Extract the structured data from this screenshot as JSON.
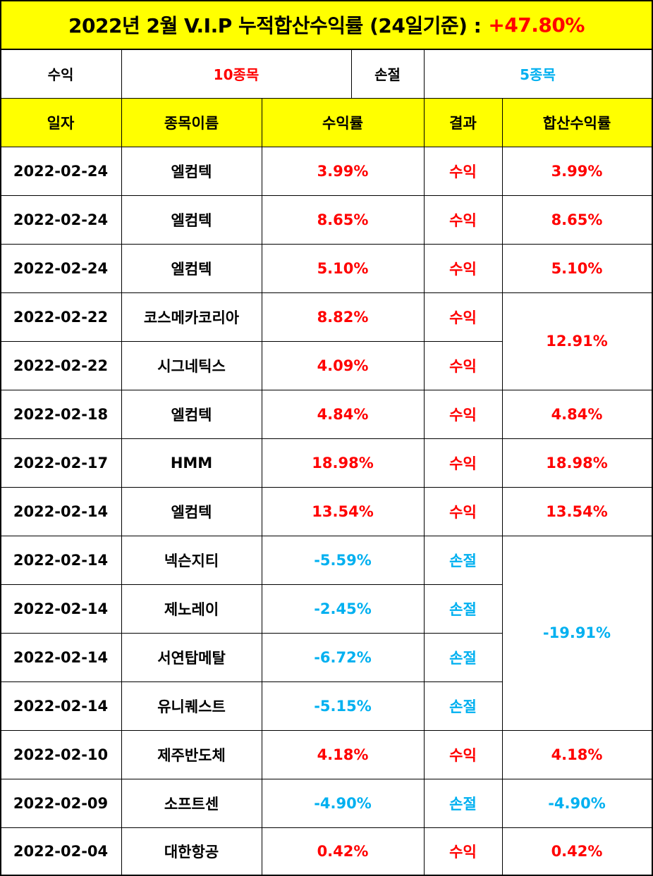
{
  "title": {
    "text": "2022년 2월 V.I.P 누적합산수익률 (24일기준) :",
    "total": "+47.80%"
  },
  "summary": {
    "gain_label": "수익",
    "gain_count": "10종목",
    "loss_label": "손절",
    "loss_count": "5종목"
  },
  "headers": [
    "일자",
    "종목이름",
    "수익률",
    "결과",
    "합산수익률"
  ],
  "rows": [
    {
      "date": "2022-02-24",
      "name": "엘컴텍",
      "rate": "3.99%",
      "result": "수익",
      "type": "gain"
    },
    {
      "date": "2022-02-24",
      "name": "엘컴텍",
      "rate": "8.65%",
      "result": "수익",
      "type": "gain"
    },
    {
      "date": "2022-02-24",
      "name": "엘컴텍",
      "rate": "5.10%",
      "result": "수익",
      "type": "gain"
    },
    {
      "date": "2022-02-22",
      "name": "코스메카코리아",
      "rate": "8.82%",
      "result": "수익",
      "type": "gain"
    },
    {
      "date": "2022-02-22",
      "name": "시그네틱스",
      "rate": "4.09%",
      "result": "수익",
      "type": "gain"
    },
    {
      "date": "2022-02-18",
      "name": "엘컴텍",
      "rate": "4.84%",
      "result": "수익",
      "type": "gain"
    },
    {
      "date": "2022-02-17",
      "name": "HMM",
      "rate": "18.98%",
      "result": "수익",
      "type": "gain"
    },
    {
      "date": "2022-02-14",
      "name": "엘컴텍",
      "rate": "13.54%",
      "result": "수익",
      "type": "gain"
    },
    {
      "date": "2022-02-14",
      "name": "넥슨지티",
      "rate": "-5.59%",
      "result": "손절",
      "type": "loss"
    },
    {
      "date": "2022-02-14",
      "name": "제노레이",
      "rate": "-2.45%",
      "result": "손절",
      "type": "loss"
    },
    {
      "date": "2022-02-14",
      "name": "서연탑메탈",
      "rate": "-6.72%",
      "result": "손절",
      "type": "loss"
    },
    {
      "date": "2022-02-14",
      "name": "유니퀘스트",
      "rate": "-5.15%",
      "result": "손절",
      "type": "loss"
    },
    {
      "date": "2022-02-10",
      "name": "제주반도체",
      "rate": "4.18%",
      "result": "수익",
      "type": "gain"
    },
    {
      "date": "2022-02-09",
      "name": "소프트센",
      "rate": "-4.90%",
      "result": "손절",
      "type": "loss"
    },
    {
      "date": "2022-02-04",
      "name": "대한항공",
      "rate": "0.42%",
      "result": "수익",
      "type": "gain"
    }
  ],
  "combined": [
    {
      "rows": [
        0
      ],
      "value": "3.99%",
      "type": "gain"
    },
    {
      "rows": [
        1
      ],
      "value": "8.65%",
      "type": "gain"
    },
    {
      "rows": [
        2
      ],
      "value": "5.10%",
      "type": "gain"
    },
    {
      "rows": [
        3,
        4
      ],
      "value": "12.91%",
      "type": "gain"
    },
    {
      "rows": [
        5
      ],
      "value": "4.84%",
      "type": "gain"
    },
    {
      "rows": [
        6
      ],
      "value": "18.98%",
      "type": "gain"
    },
    {
      "rows": [
        7
      ],
      "value": "13.54%",
      "type": "gain"
    },
    {
      "rows": [
        8,
        9,
        10,
        11
      ],
      "value": "-19.91%",
      "type": "loss"
    },
    {
      "rows": [
        12
      ],
      "value": "4.18%",
      "type": "gain"
    },
    {
      "rows": [
        13
      ],
      "value": "-4.90%",
      "type": "loss"
    },
    {
      "rows": [
        14
      ],
      "value": "0.42%",
      "type": "gain"
    }
  ],
  "colors": {
    "header_bg": "#ffff00",
    "gain": "#ff0000",
    "loss": "#00b0f0",
    "border": "#000000"
  }
}
